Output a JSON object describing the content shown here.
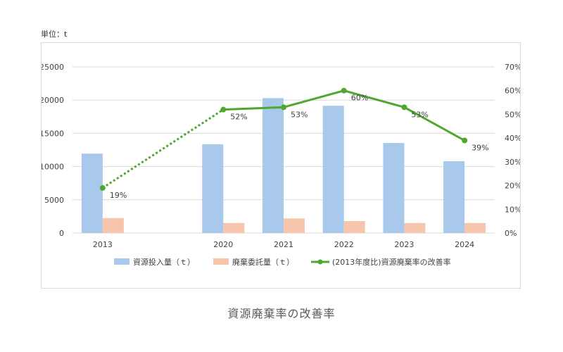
{
  "unit_label": "単位：t",
  "caption": "資源廃棄率の改善率",
  "colors": {
    "input_bar": "#a9c9ec",
    "disposal_bar": "#f6c5ac",
    "rate_line": "#4ea72e",
    "grid": "#d9d9d9"
  },
  "chart_data": {
    "type": "bar",
    "categories": [
      "2013",
      "",
      "2020",
      "2021",
      "2022",
      "2023",
      "2024"
    ],
    "series": [
      {
        "name": "資源投入量（ｔ）",
        "kind": "bar",
        "axis": "left",
        "values": [
          11950,
          null,
          13350,
          20300,
          19150,
          13550,
          10800
        ]
      },
      {
        "name": "廃棄委託量（ｔ）",
        "kind": "bar",
        "axis": "left",
        "values": [
          2250,
          null,
          1500,
          2200,
          1800,
          1500,
          1500
        ]
      },
      {
        "name": "(2013年度比)資源廃棄率の改善率",
        "kind": "line",
        "axis": "right",
        "values": [
          19,
          null,
          52,
          53,
          60,
          53,
          39
        ],
        "labels": [
          "19%",
          "",
          "52%",
          "53%",
          "60%",
          "53%",
          "39%"
        ],
        "dotted_segment": [
          0,
          2
        ]
      }
    ],
    "y_left": {
      "min": 0,
      "max": 25000,
      "ticks": [
        "0",
        "5000",
        "10000",
        "15000",
        "20000",
        "25000"
      ]
    },
    "y_right": {
      "min": 0,
      "max": 70,
      "ticks": [
        "0%",
        "10%",
        "20%",
        "30%",
        "40%",
        "50%",
        "60%",
        "70%"
      ]
    },
    "grid": true,
    "legend_position": "bottom"
  }
}
